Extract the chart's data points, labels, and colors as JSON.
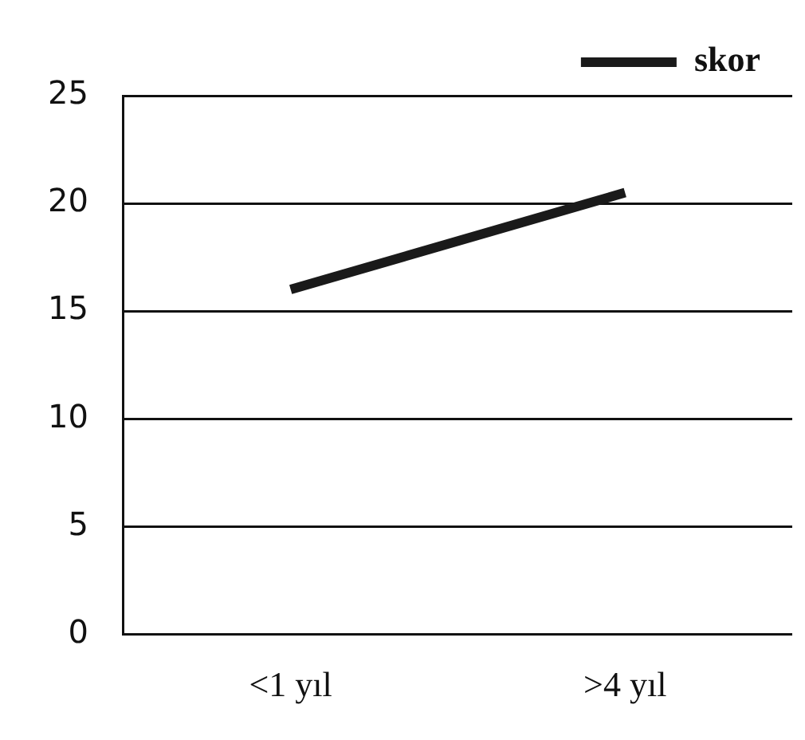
{
  "chart_data": {
    "type": "line",
    "categories": [
      "<1 yıl",
      ">4 yıl"
    ],
    "series": [
      {
        "name": "skor",
        "color": "#1a1a1a",
        "values": [
          16,
          20.5
        ]
      }
    ],
    "ylim": [
      0,
      25
    ],
    "yticks": [
      0,
      5,
      10,
      15,
      20,
      25
    ],
    "grid": "y",
    "legend": "top right",
    "marker": "none",
    "line_style": "solid"
  }
}
